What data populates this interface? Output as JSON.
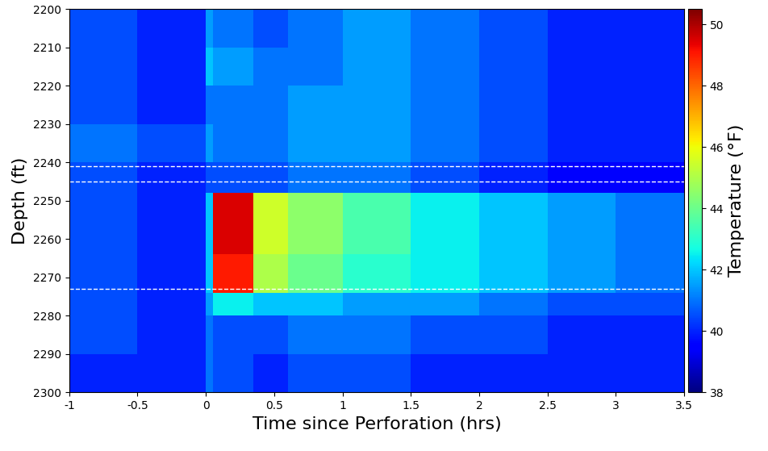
{
  "chart_data": {
    "type": "heatmap",
    "x_label": "Time since Perforation (hrs)",
    "y_label": "Depth (ft)",
    "colorbar_label": "Temperature (°F)",
    "x_edges": [
      -1,
      -0.5,
      0,
      0.05,
      0.35,
      0.6,
      1,
      1.5,
      2,
      2.5,
      3,
      3.5
    ],
    "y_edges": [
      2200,
      2210,
      2220,
      2230,
      2240,
      2248,
      2256,
      2264,
      2274,
      2280,
      2290,
      2300
    ],
    "cells": [
      [
        40.5,
        40,
        41.5,
        41,
        40.5,
        41,
        41.5,
        41,
        40.5,
        40,
        40
      ],
      [
        40.5,
        40,
        42,
        41.5,
        41,
        41,
        41.5,
        41,
        40.5,
        40,
        40
      ],
      [
        40.5,
        40,
        41,
        41,
        41,
        41.5,
        41.5,
        41,
        40.5,
        40,
        40
      ],
      [
        41,
        40.5,
        41.5,
        41,
        41,
        41.5,
        41.5,
        41,
        40.5,
        40,
        40
      ],
      [
        40.5,
        40,
        40.5,
        40.5,
        40.5,
        41,
        41,
        40.5,
        40,
        39.5,
        39.5
      ],
      [
        40.5,
        40,
        42,
        49.5,
        45.5,
        44.5,
        43.5,
        42.5,
        42,
        41.5,
        41
      ],
      [
        40.5,
        40,
        42,
        49.5,
        45.5,
        44.5,
        43.5,
        42.5,
        42,
        41.5,
        41
      ],
      [
        40.5,
        40,
        42,
        49,
        45,
        44,
        43,
        42.5,
        42,
        41.5,
        41
      ],
      [
        40.5,
        40,
        41.5,
        42.5,
        42,
        42,
        41.5,
        41.5,
        41,
        40.5,
        40.5
      ],
      [
        40.5,
        40,
        41,
        40.5,
        40.5,
        41,
        41,
        40.5,
        40.5,
        40,
        40
      ],
      [
        40,
        40,
        41,
        40.5,
        40,
        40.5,
        40.5,
        40,
        40,
        40,
        40
      ]
    ],
    "reference_depths": [
      2241,
      2245,
      2273
    ],
    "xlim": [
      -1,
      3.5
    ],
    "xticks": [
      -1,
      -0.5,
      0,
      0.5,
      1,
      1.5,
      2,
      2.5,
      3,
      3.5
    ],
    "ylim": [
      2300,
      2200
    ],
    "yticks": [
      2200,
      2210,
      2220,
      2230,
      2240,
      2250,
      2260,
      2270,
      2280,
      2290,
      2300
    ],
    "colorbar_range": [
      38,
      50.5
    ],
    "colorbar_ticks": [
      38,
      40,
      42,
      44,
      46,
      48,
      50
    ]
  }
}
